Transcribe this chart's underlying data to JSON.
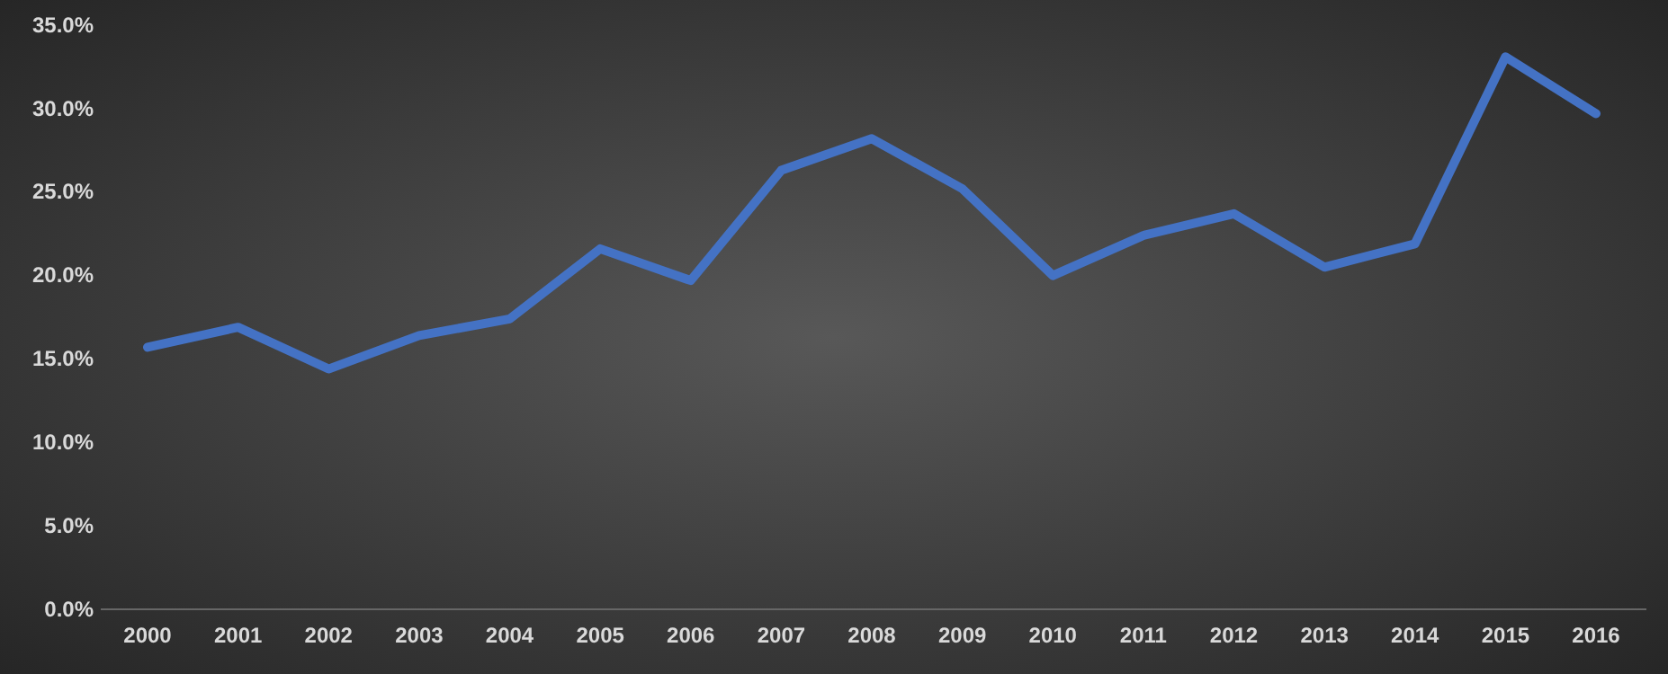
{
  "chart_data": {
    "type": "line",
    "categories": [
      "2000",
      "2001",
      "2002",
      "2003",
      "2004",
      "2005",
      "2006",
      "2007",
      "2008",
      "2009",
      "2010",
      "2011",
      "2012",
      "2013",
      "2014",
      "2015",
      "2016"
    ],
    "series": [
      {
        "color": "#4472c4",
        "values": [
          15.7,
          16.9,
          14.4,
          16.4,
          17.4,
          21.6,
          19.7,
          26.3,
          28.2,
          25.2,
          20.0,
          22.4,
          23.7,
          20.5,
          21.9,
          33.1,
          29.7
        ]
      }
    ],
    "ylim": [
      0,
      35
    ],
    "yticks": [
      {
        "value": 0,
        "label": "0.0%"
      },
      {
        "value": 5,
        "label": "5.0%"
      },
      {
        "value": 10,
        "label": "10.0%"
      },
      {
        "value": 15,
        "label": "15.0%"
      },
      {
        "value": 20,
        "label": "20.0%"
      },
      {
        "value": 25,
        "label": "25.0%"
      },
      {
        "value": 30,
        "label": "30.0%"
      },
      {
        "value": 35,
        "label": "35.0%"
      }
    ],
    "marker": "none",
    "line_style": "solid"
  }
}
